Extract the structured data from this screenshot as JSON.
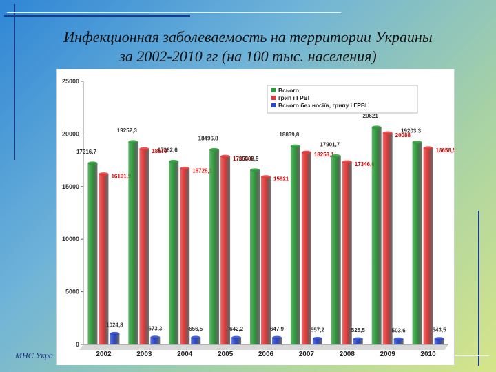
{
  "title": {
    "line1": "Инфекционная заболеваемость на территории Украины",
    "line2": "за 2002-2010 гг (на 100 тыс. населения)"
  },
  "footer": {
    "text": "МНС Укра"
  },
  "colors": {
    "series1": "#2e9a3a",
    "series2": "#e03a3a",
    "series3": "#2a46c8",
    "series2_label": "#d80000",
    "series3_label": "#333333"
  },
  "chart_data": {
    "type": "bar",
    "categories": [
      "2002",
      "2003",
      "2004",
      "2005",
      "2006",
      "2007",
      "2008",
      "2009",
      "2010"
    ],
    "series": [
      {
        "name": "Всього",
        "values": [
          17216.7,
          19252.3,
          17382.6,
          18496.8,
          16568.9,
          18839.8,
          17901.7,
          20621,
          19203.3
        ],
        "labels": [
          "17216,7",
          "19252,3",
          "17382,6",
          "18496,8",
          "16568,9",
          "18839,8",
          "17901,7",
          "20621",
          "19203,3"
        ]
      },
      {
        "name": "грип і ГРВІ",
        "values": [
          16191.9,
          18579,
          16726.1,
          17854.6,
          15921,
          18253.1,
          17346.6,
          20088,
          18658.5
        ],
        "labels": [
          "16191,9",
          "18579",
          "16726,1",
          "17854,6",
          "15921",
          "18253,1",
          "17346,6",
          "20088",
          "18658,5"
        ]
      },
      {
        "name": "Всього без носіїв, грипу і ГРВІ",
        "values": [
          1024.8,
          673.3,
          656.5,
          642.2,
          647.9,
          557.2,
          525.5,
          503.6,
          543.5
        ],
        "labels": [
          "1024,8",
          "673,3",
          "656,5",
          "642,2",
          "647,9",
          "557,2",
          "525,5",
          "503,6",
          "543,5"
        ]
      }
    ],
    "yticks": [
      "0",
      "5000",
      "10000",
      "15000",
      "20000",
      "25000"
    ],
    "ylim": [
      0,
      25000
    ],
    "legend_position": "top-right",
    "grid": false
  }
}
